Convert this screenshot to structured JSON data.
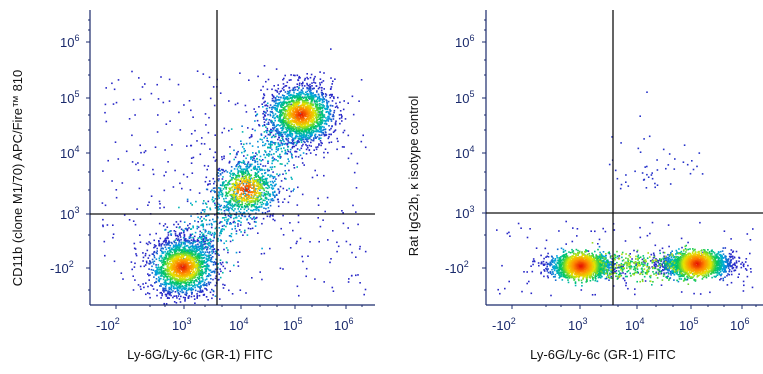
{
  "chart_data": [
    {
      "type": "scatter",
      "subtype": "flow-cytometry-density-dot-plot",
      "xlabel": "Ly-6G/Ly-6c (GR-1) FITC",
      "ylabel": "CD11b (clone M1/70) APC/Fire™ 810",
      "x_scale": "biexponential",
      "y_scale": "biexponential",
      "x_ticks": [
        "-10^2",
        "10^3",
        "10^4",
        "10^5",
        "10^6"
      ],
      "y_ticks": [
        "10^6",
        "10^5",
        "10^4",
        "10^3",
        "-10^2"
      ],
      "xlim": [
        -300,
        1500000
      ],
      "ylim": [
        -300,
        3000000
      ],
      "quadrant_gate": {
        "x": 3800,
        "y": 850
      },
      "populations": [
        {
          "name": "",
          "x": 900,
          "y": -60,
          "relative_density": "high"
        },
        {
          "name": "",
          "x": 150000,
          "y": 60000,
          "relative_density": "high"
        },
        {
          "name": "",
          "x": 15000,
          "y": 3000,
          "relative_density": "medium"
        }
      ],
      "grid": false,
      "legend": "none"
    },
    {
      "type": "scatter",
      "subtype": "flow-cytometry-density-dot-plot",
      "xlabel": "Ly-6G/Ly-6c (GR-1) FITC",
      "ylabel": "Rat IgG2b, κ isotype control",
      "x_scale": "biexponential",
      "y_scale": "biexponential",
      "x_ticks": [
        "-10^2",
        "10^3",
        "10^4",
        "10^5",
        "10^6"
      ],
      "y_ticks": [
        "10^6",
        "10^5",
        "10^4",
        "10^3",
        "-10^2"
      ],
      "xlim": [
        -300,
        1500000
      ],
      "ylim": [
        -300,
        3000000
      ],
      "quadrant_gate": {
        "x": 3800,
        "y": 850
      },
      "populations": [
        {
          "name": "",
          "x": 1000,
          "y": -60,
          "relative_density": "high"
        },
        {
          "name": "",
          "x": 150000,
          "y": -40,
          "relative_density": "high"
        }
      ],
      "grid": false,
      "legend": "none"
    }
  ]
}
